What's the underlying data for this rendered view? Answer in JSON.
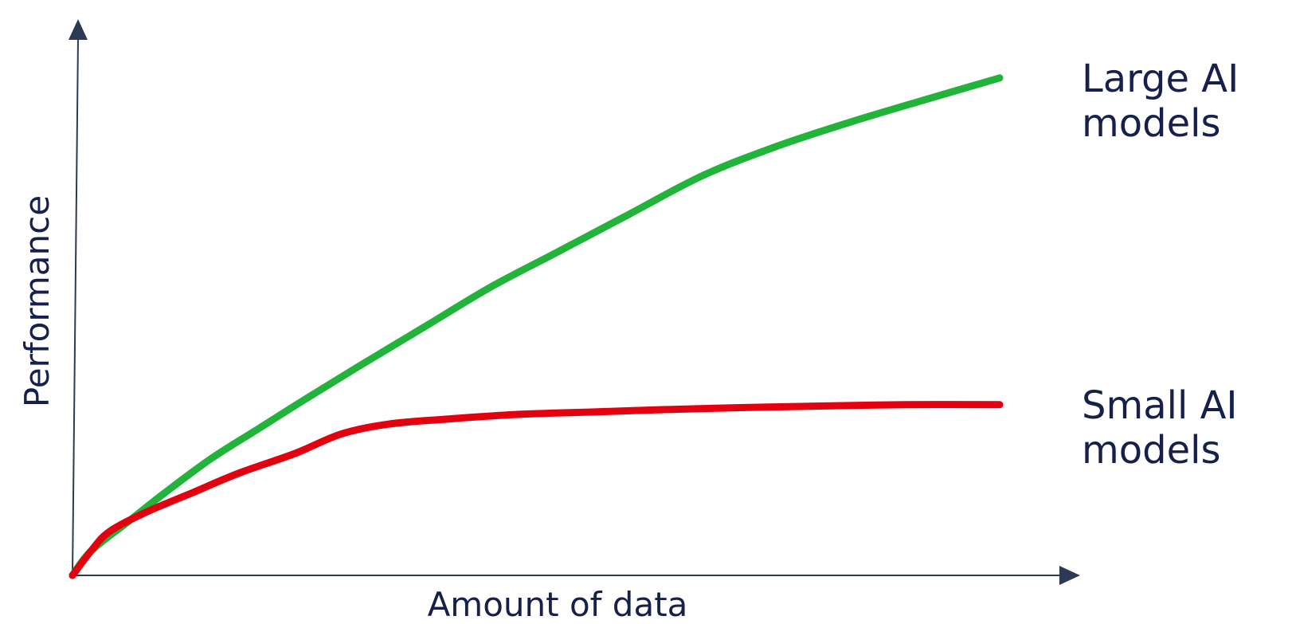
{
  "chart_data": {
    "type": "line",
    "title": "",
    "xlabel": "Amount of data",
    "ylabel": "Performance",
    "grid": false,
    "legend": "direct-labels-right",
    "axes_have_arrows": true,
    "xlim": [
      0,
      100
    ],
    "ylim": [
      0,
      100
    ],
    "colors": {
      "axis": "#2c3a55",
      "text": "#16204a"
    },
    "series": [
      {
        "name": "Large AI models",
        "label_lines": [
          "Large AI",
          "models"
        ],
        "color": "#22b43a",
        "points": [
          [
            0,
            0
          ],
          [
            2,
            5
          ],
          [
            6,
            11
          ],
          [
            10,
            17
          ],
          [
            15,
            24
          ],
          [
            20,
            30
          ],
          [
            25,
            36
          ],
          [
            31,
            43
          ],
          [
            38,
            51
          ],
          [
            45,
            59
          ],
          [
            52,
            66
          ],
          [
            60,
            74
          ],
          [
            68,
            82
          ],
          [
            76,
            88
          ],
          [
            84,
            93
          ],
          [
            91,
            97
          ],
          [
            100,
            102
          ]
        ]
      },
      {
        "name": "Small AI models",
        "label_lines": [
          "Small AI",
          "models"
        ],
        "color": "#e3000f",
        "points": [
          [
            0,
            0
          ],
          [
            2,
            5
          ],
          [
            4,
            9
          ],
          [
            8,
            13
          ],
          [
            13,
            17
          ],
          [
            18,
            21
          ],
          [
            24,
            25
          ],
          [
            29,
            29
          ],
          [
            34,
            31
          ],
          [
            40,
            32
          ],
          [
            48,
            33
          ],
          [
            56,
            33.5
          ],
          [
            64,
            34
          ],
          [
            72,
            34.4
          ],
          [
            80,
            34.7
          ],
          [
            90,
            35
          ],
          [
            100,
            35
          ]
        ]
      }
    ]
  }
}
